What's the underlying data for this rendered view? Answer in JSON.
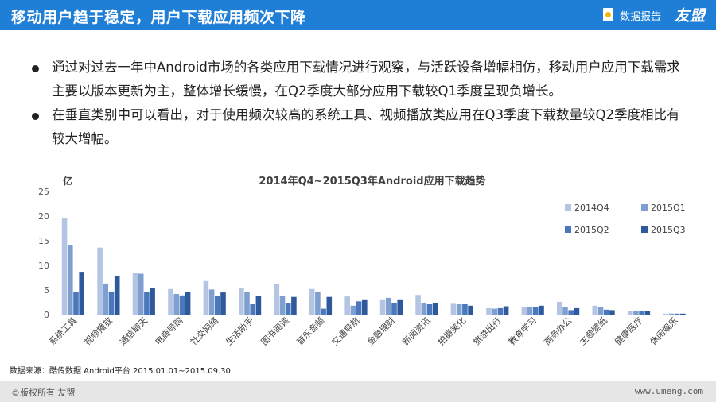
{
  "header": {
    "title": "移动用户趋于稳定，用户下载应用频次下降",
    "report_label": "数据报告",
    "brand": "友盟"
  },
  "bullets": [
    "通过对过去一年中Android市场的各类应用下载情况进行观察，与活跃设备增幅相仿，移动用户应用下载需求主要以版本更新为主，整体增长缓慢，在Q2季度大部分应用下载较Q1季度呈现负增长。",
    "在垂直类别中可以看出，对于使用频次较高的系统工具、视频播放类应用在Q3季度下载数量较Q2季度相比有较大增幅。"
  ],
  "chart_data": {
    "type": "bar",
    "title": "2014年Q4~2015Q3年Android应用下载趋势",
    "ylabel": "亿",
    "ylim": [
      0,
      25
    ],
    "yticks": [
      0,
      5,
      10,
      15,
      20,
      25
    ],
    "grid": false,
    "legend_position": "top-right",
    "categories": [
      "系统工具",
      "视频播放",
      "通信聊天",
      "电商导购",
      "社交网络",
      "生活助手",
      "图书阅读",
      "音乐音频",
      "交通导航",
      "金融理财",
      "新闻资讯",
      "拍摄美化",
      "旅游出行",
      "教育学习",
      "商务办公",
      "主题壁纸",
      "健康医疗",
      "休闲娱乐"
    ],
    "series": [
      {
        "name": "2014Q4",
        "color": "#b4c5e4",
        "values": [
          19.5,
          13.6,
          8.4,
          5.2,
          6.8,
          5.4,
          6.2,
          5.2,
          3.7,
          3.1,
          4.0,
          2.2,
          1.3,
          1.6,
          2.6,
          1.8,
          0.7,
          0.2
        ]
      },
      {
        "name": "2015Q1",
        "color": "#7f9fd0",
        "values": [
          14.1,
          6.3,
          8.3,
          4.2,
          5.1,
          4.6,
          3.8,
          4.7,
          1.8,
          3.4,
          2.4,
          2.1,
          1.2,
          1.6,
          1.5,
          1.6,
          0.7,
          0.2
        ]
      },
      {
        "name": "2015Q2",
        "color": "#4a78bd",
        "values": [
          4.6,
          4.7,
          4.6,
          3.9,
          3.8,
          2.1,
          2.3,
          1.2,
          2.7,
          2.3,
          2.1,
          2.1,
          1.3,
          1.6,
          0.9,
          1.0,
          0.7,
          0.2
        ]
      },
      {
        "name": "2015Q3",
        "color": "#2e5a9c",
        "values": [
          8.7,
          7.8,
          5.4,
          4.6,
          4.5,
          3.8,
          3.6,
          3.6,
          3.1,
          3.1,
          2.3,
          1.8,
          1.7,
          1.8,
          1.3,
          0.9,
          0.8,
          0.2
        ]
      }
    ]
  },
  "source": "数据来源：酷传数据  Android平台 2015.01.01~2015.09.30",
  "footer": {
    "copyright": "©版权所有   友盟",
    "site": "www.umeng.com"
  }
}
